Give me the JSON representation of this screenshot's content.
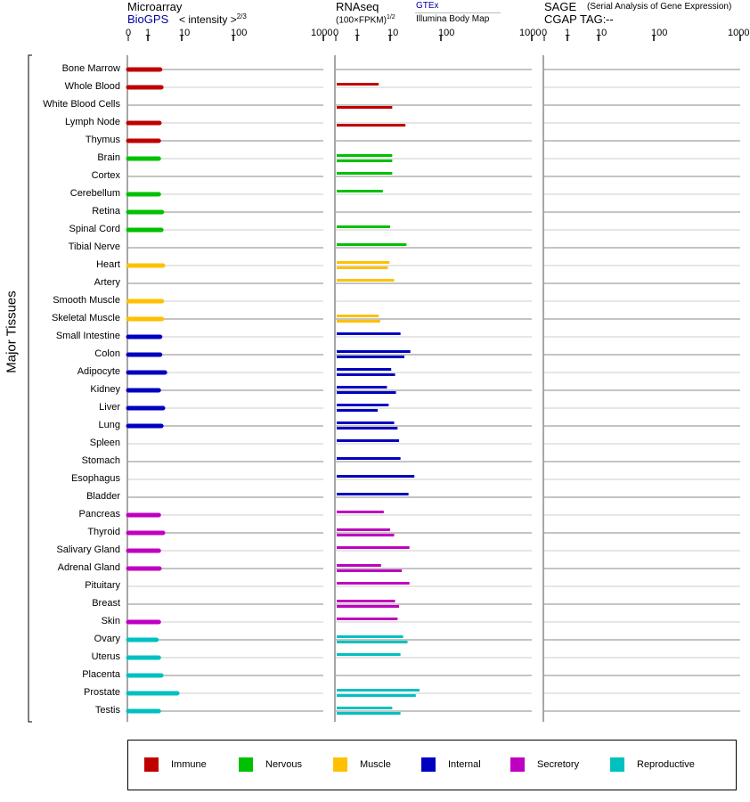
{
  "headers": {
    "microarray": "Microarray",
    "biogps": "BioGPS",
    "intensity": "< intensity >",
    "intensity_exp": "2/3",
    "rnaseq": "RNAseq",
    "fpkm": "(100×FPKM)",
    "fpkm_exp": "1/2",
    "gtex": "GTEx",
    "illumina": "Illumina Body Map",
    "sage": "SAGE",
    "sage_desc": "(Serial Analysis of Gene Expression)",
    "cgap": "CGAP TAG:",
    "cgap_value": "--"
  },
  "colors": {
    "Immune": "#c00000",
    "Nervous": "#00c000",
    "Muscle": "#ffc000",
    "Internal": "#0000c0",
    "Secretory": "#c000c0",
    "Reproductive": "#00c0c0"
  },
  "chart_data": {
    "type": "bar",
    "ylabel": "Major Tissues",
    "axis_ticks": [
      "0",
      "1",
      "10",
      "100",
      "1000"
    ],
    "categories": [
      "Bone Marrow",
      "Whole Blood",
      "White Blood Cells",
      "Lymph Node",
      "Thymus",
      "Brain",
      "Cortex",
      "Cerebellum",
      "Retina",
      "Spinal Cord",
      "Tibial Nerve",
      "Heart",
      "Artery",
      "Smooth Muscle",
      "Skeletal Muscle",
      "Small Intestine",
      "Colon",
      "Adipocyte",
      "Kidney",
      "Liver",
      "Lung",
      "Spleen",
      "Stomach",
      "Esophagus",
      "Bladder",
      "Pancreas",
      "Thyroid",
      "Salivary Gland",
      "Adrenal Gland",
      "Pituitary",
      "Breast",
      "Skin",
      "Ovary",
      "Uterus",
      "Placenta",
      "Prostate",
      "Testis"
    ],
    "groups": [
      "Immune",
      "Immune",
      "Immune",
      "Immune",
      "Immune",
      "Nervous",
      "Nervous",
      "Nervous",
      "Nervous",
      "Nervous",
      "Nervous",
      "Muscle",
      "Muscle",
      "Muscle",
      "Muscle",
      "Internal",
      "Internal",
      "Internal",
      "Internal",
      "Internal",
      "Internal",
      "Internal",
      "Internal",
      "Internal",
      "Internal",
      "Secretory",
      "Secretory",
      "Secretory",
      "Secretory",
      "Secretory",
      "Secretory",
      "Secretory",
      "Reproductive",
      "Reproductive",
      "Reproductive",
      "Reproductive",
      "Reproductive"
    ],
    "microarray_biogps": [
      2.3,
      2.5,
      null,
      2.2,
      2.1,
      2.1,
      null,
      2.1,
      2.6,
      2.5,
      null,
      2.8,
      null,
      2.6,
      2.6,
      2.3,
      2.3,
      3.2,
      2.1,
      2.8,
      2.5,
      null,
      null,
      null,
      null,
      2.1,
      2.8,
      2.1,
      2.2,
      null,
      null,
      2.1,
      1.8,
      2.1,
      2.5,
      7.4,
      2.1
    ],
    "rnaseq_gtex": [
      null,
      4.5,
      null,
      null,
      null,
      11,
      11,
      6,
      null,
      10,
      21,
      9.5,
      12,
      null,
      4.5,
      16,
      25,
      10.5,
      8,
      9,
      12,
      15,
      16,
      30,
      23,
      6.4,
      10,
      24,
      5.3,
      24,
      12.5,
      14,
      18,
      16,
      null,
      38,
      11
    ],
    "rnaseq_illumina": [
      null,
      null,
      11,
      20,
      null,
      11,
      null,
      null,
      null,
      null,
      null,
      8.5,
      null,
      null,
      5,
      null,
      19,
      12.5,
      13,
      4.2,
      14,
      null,
      null,
      null,
      null,
      null,
      12,
      null,
      17,
      null,
      15,
      null,
      22,
      null,
      null,
      32,
      16
    ],
    "sage": [],
    "legend": [
      "Immune",
      "Nervous",
      "Muscle",
      "Internal",
      "Secretory",
      "Reproductive"
    ],
    "legend_position": "bottom"
  }
}
